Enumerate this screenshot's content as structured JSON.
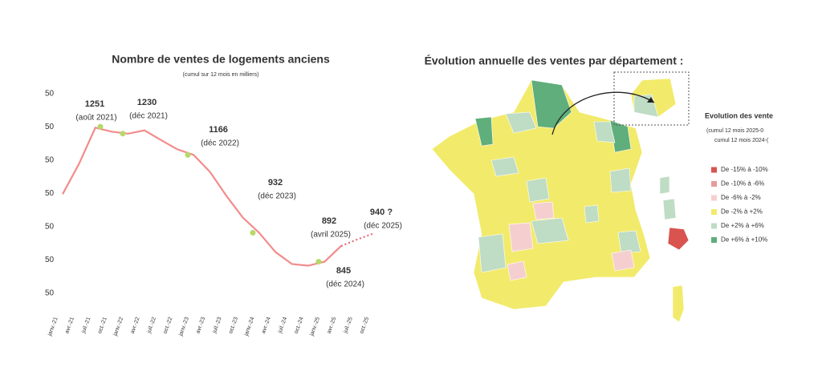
{
  "chart_data": [
    {
      "type": "line",
      "title": "Nombre de ventes de logements anciens",
      "subtitle": "(cumul sur 12 mois en milliers)",
      "categories": [
        "janv.-21",
        "avr.-21",
        "juil.-21",
        "oct.-21",
        "janv.-22",
        "avr.-22",
        "juil.-22",
        "oct.-22",
        "janv.-23",
        "avr.-23",
        "juil.-23",
        "oct.-23",
        "janv.-24",
        "avr.-24",
        "juil.-24",
        "oct.-24",
        "janv.-25",
        "avr.-25",
        "juil.-25",
        "oct.-25"
      ],
      "series": [
        {
          "color": "#f28b8b",
          "style": "solid",
          "values": [
            1048,
            1139,
            1248,
            1236,
            1230,
            1240,
            1211,
            1183,
            1166,
            1115,
            1043,
            978,
            932,
            874,
            838,
            833,
            845,
            892,
            null,
            null
          ]
        },
        {
          "color": "#e36a7a",
          "style": "dashed",
          "values": [
            null,
            null,
            null,
            null,
            null,
            null,
            null,
            null,
            null,
            null,
            null,
            null,
            null,
            null,
            null,
            null,
            null,
            892,
            912,
            930
          ]
        }
      ],
      "ylim": [
        750,
        1350
      ],
      "yticks": [
        {
          "value": 1350,
          "label": "50"
        },
        {
          "value": 1250,
          "label": "50"
        },
        {
          "value": 1150,
          "label": "50"
        },
        {
          "value": 1050,
          "label": "50"
        },
        {
          "value": 950,
          "label": "50"
        },
        {
          "value": 850,
          "label": "50"
        },
        {
          "value": 750,
          "label": "50"
        }
      ],
      "marker_color": "#b5d96a",
      "annotations": [
        {
          "value": 1251,
          "date": "(août 2021)"
        },
        {
          "value": 1230,
          "date": "(déc 2021)"
        },
        {
          "value": 1166,
          "date": "(déc 2022)"
        },
        {
          "value": 932,
          "date": "(déc 2023)"
        },
        {
          "value": 892,
          "date": "(avril 2025)"
        },
        {
          "value": 940,
          "label": "940 ?",
          "date": "(déc 2025)"
        },
        {
          "value": 845,
          "date": "(déc 2024)"
        }
      ]
    },
    {
      "type": "map",
      "title": "Évolution annuelle des ventes par département :",
      "legend": {
        "title": "Evolution des vente",
        "notes": [
          "(cumul 12 mois 2025-0",
          "cumul 12 mois 2024-("
        ],
        "items": [
          {
            "label": "De -15% à -10%",
            "color": "#d9534f"
          },
          {
            "label": "De -10% à -6%",
            "color": "#e89a9a"
          },
          {
            "label": "De -6% à -2%",
            "color": "#f5cfcf"
          },
          {
            "label": "De -2% à +2%",
            "color": "#f2ea6b"
          },
          {
            "label": "De +2% à +6%",
            "color": "#bfdcc4"
          },
          {
            "label": "De +6% à +10%",
            "color": "#5fae7c"
          }
        ]
      }
    }
  ]
}
